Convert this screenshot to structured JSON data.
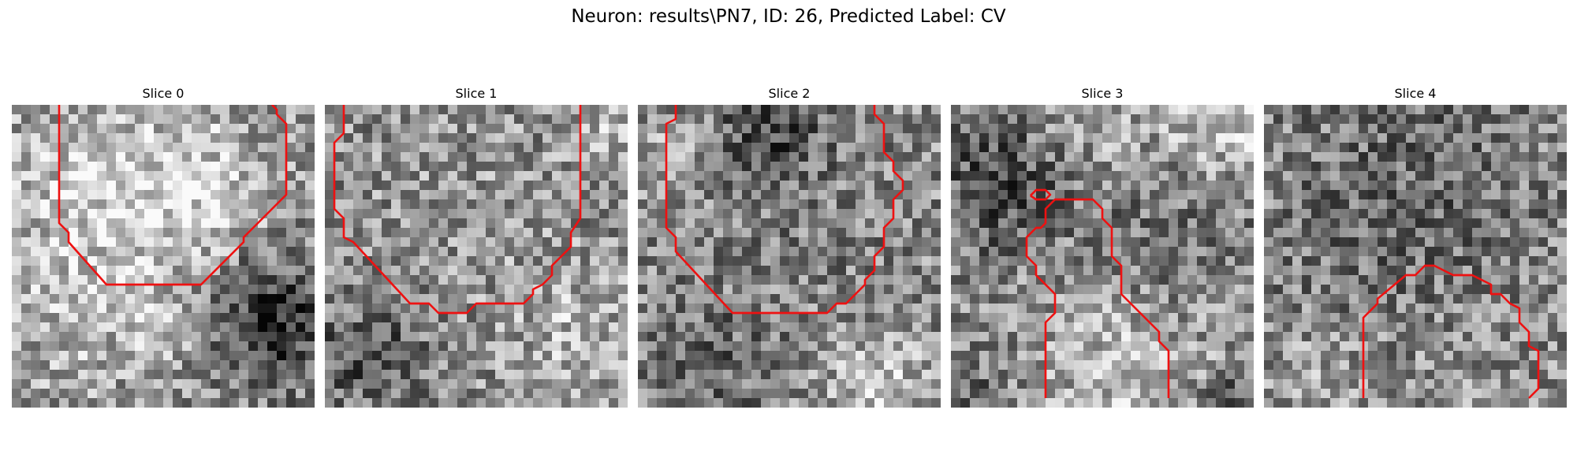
{
  "figure": {
    "suptitle": "Neuron: results\\PN7, ID: 26, Predicted Label: CV",
    "contour_color": "#ee1111",
    "grid_size": 32,
    "colormap": "gray"
  },
  "slices": [
    {
      "title": "Slice 0",
      "intensity_seed": 11,
      "contour_paths": [
        [
          [
            5,
            0
          ],
          [
            5,
            12.5
          ],
          [
            6,
            13.5
          ],
          [
            6,
            14.5
          ],
          [
            10,
            19
          ],
          [
            20,
            19
          ],
          [
            24.5,
            14.5
          ],
          [
            24.5,
            14
          ],
          [
            29,
            9.5
          ],
          [
            29,
            2
          ],
          [
            28,
            1
          ],
          [
            28,
            0.5
          ],
          [
            27.5,
            0
          ]
        ]
      ]
    },
    {
      "title": "Slice 1",
      "intensity_seed": 23,
      "contour_paths": [
        [
          [
            2,
            0
          ],
          [
            2,
            3
          ],
          [
            1,
            4
          ],
          [
            1,
            11
          ],
          [
            2,
            12
          ],
          [
            2,
            14
          ],
          [
            3,
            14.5
          ],
          [
            9,
            21
          ],
          [
            11,
            21
          ],
          [
            12,
            22
          ],
          [
            15,
            22
          ],
          [
            16,
            21
          ],
          [
            21,
            21
          ],
          [
            22,
            20
          ],
          [
            22,
            19.5
          ],
          [
            23,
            19
          ],
          [
            24,
            18
          ],
          [
            24,
            17
          ],
          [
            25,
            16
          ],
          [
            26,
            15
          ],
          [
            26,
            13.5
          ],
          [
            27,
            12
          ],
          [
            27,
            0
          ]
        ]
      ]
    },
    {
      "title": "Slice 2",
      "intensity_seed": 37,
      "contour_paths": [
        [
          [
            4,
            0
          ],
          [
            4,
            1.5
          ],
          [
            3,
            2
          ],
          [
            3,
            13
          ],
          [
            4,
            14
          ],
          [
            4,
            15.5
          ],
          [
            10,
            22
          ],
          [
            20,
            22
          ],
          [
            21,
            21
          ],
          [
            22,
            21
          ],
          [
            24,
            19
          ],
          [
            24,
            18.5
          ],
          [
            25,
            17.5
          ],
          [
            25,
            16
          ],
          [
            26,
            15
          ],
          [
            26,
            14
          ],
          [
            26,
            13
          ],
          [
            27,
            12
          ],
          [
            27,
            10
          ],
          [
            28,
            9
          ],
          [
            28,
            8
          ],
          [
            27,
            7
          ],
          [
            27,
            6
          ],
          [
            26,
            5
          ],
          [
            26,
            2
          ],
          [
            25,
            1
          ],
          [
            25,
            0
          ]
        ]
      ]
    },
    {
      "title": "Slice 3",
      "intensity_seed": 51,
      "contour_paths": [
        [
          [
            10,
            31
          ],
          [
            10,
            23
          ],
          [
            11,
            22
          ],
          [
            11,
            20
          ],
          [
            9,
            18
          ],
          [
            9,
            17
          ],
          [
            8,
            16
          ],
          [
            8,
            14
          ],
          [
            9,
            13
          ],
          [
            9.5,
            13
          ],
          [
            10,
            12.5
          ],
          [
            10,
            11
          ],
          [
            11,
            10
          ],
          [
            13,
            10
          ],
          [
            15,
            10
          ],
          [
            16,
            11
          ],
          [
            16,
            12
          ],
          [
            17,
            13
          ],
          [
            17,
            16
          ],
          [
            18,
            17
          ],
          [
            18,
            20
          ],
          [
            20,
            22
          ],
          [
            21,
            23
          ],
          [
            22,
            24
          ],
          [
            22,
            25
          ],
          [
            23,
            26
          ],
          [
            23,
            31
          ]
        ],
        [
          [
            8.4,
            9.6
          ],
          [
            9,
            9
          ],
          [
            10,
            9
          ],
          [
            10.5,
            9.5
          ],
          [
            10,
            10
          ],
          [
            9,
            10
          ],
          [
            8.4,
            9.6
          ]
        ]
      ]
    },
    {
      "title": "Slice 4",
      "intensity_seed": 67,
      "contour_paths": [
        [
          [
            10.5,
            31
          ],
          [
            10.5,
            22.5
          ],
          [
            12,
            21
          ],
          [
            12,
            20.5
          ],
          [
            15,
            18
          ],
          [
            16,
            18
          ],
          [
            17,
            17
          ],
          [
            18,
            17
          ],
          [
            19,
            17.5
          ],
          [
            20,
            18
          ],
          [
            22,
            18
          ],
          [
            23,
            18.5
          ],
          [
            24,
            19
          ],
          [
            24,
            20
          ],
          [
            25,
            20
          ],
          [
            26,
            21
          ],
          [
            27,
            21.5
          ],
          [
            27,
            23
          ],
          [
            28,
            24
          ],
          [
            28,
            25.5
          ],
          [
            29,
            26
          ],
          [
            29,
            30
          ],
          [
            28,
            31
          ]
        ]
      ]
    }
  ]
}
